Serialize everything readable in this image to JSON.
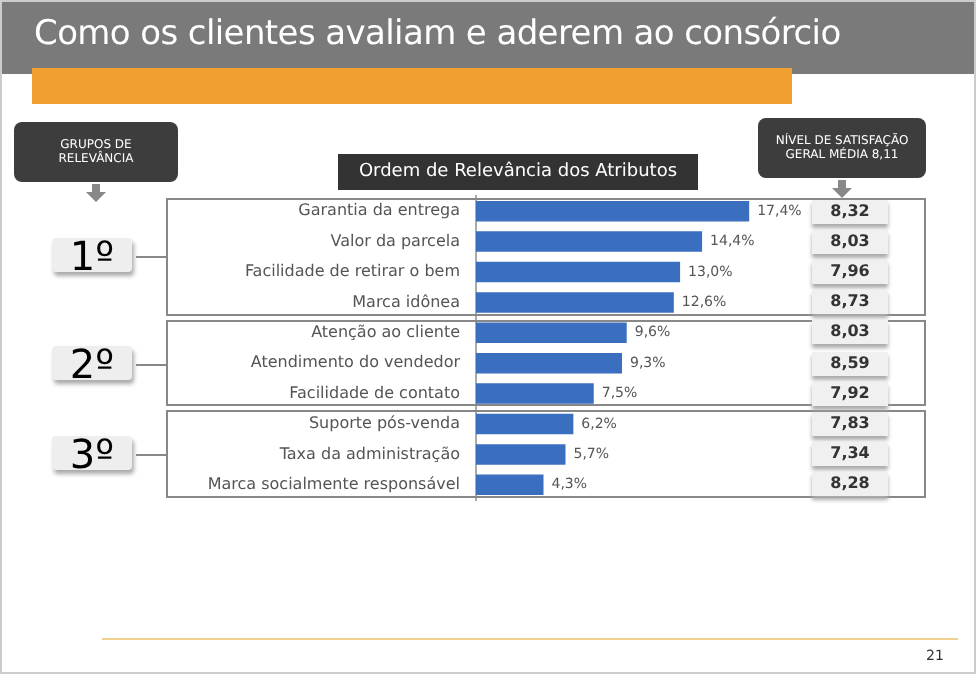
{
  "chart_data": {
    "type": "bar",
    "orientation": "horizontal",
    "title": "Como os clientes avaliam e aderem ao consórcio",
    "subtitle": "Ordem de Relevância dos Atributos",
    "categories": [
      "Garantia da entrega",
      "Valor da parcela",
      "Facilidade de retirar o bem",
      "Marca idônea",
      "Atenção ao cliente",
      "Atendimento do vendedor",
      "Facilidade de contato",
      "Suporte pós-venda",
      "Taxa da administração",
      "Marca socialmente responsável"
    ],
    "values": [
      17.4,
      14.4,
      13.0,
      12.6,
      9.6,
      9.3,
      7.5,
      6.2,
      5.7,
      4.3
    ],
    "value_labels": [
      "17,4%",
      "14,4%",
      "13,0%",
      "12,6%",
      "9,6%",
      "9,3%",
      "7,5%",
      "6,2%",
      "5,7%",
      "4,3%"
    ],
    "color": "#3a6fbf",
    "grid": false,
    "legend": false,
    "tick_labels": "y",
    "annotations": [
      "GRUPOS DE RELEVÂNCIA",
      "NÍVEL DE SATISFAÇÃO GERAL MÉDIA 8,11",
      "1º",
      "2º",
      "3º",
      "8,32",
      "8,03",
      "7,96",
      "8,73",
      "8,03",
      "8,59",
      "7,92",
      "7,83",
      "7,34",
      "8,28",
      "21"
    ]
  }
}
